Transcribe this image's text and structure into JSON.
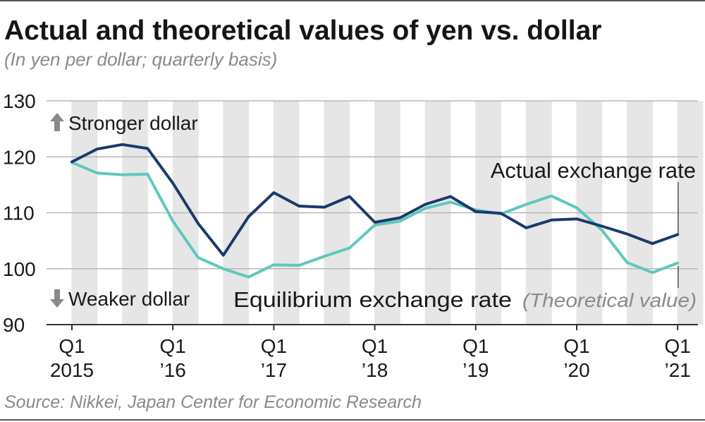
{
  "title": "Actual and theoretical values of yen vs. dollar",
  "subtitle": "(In yen per dollar; quarterly basis)",
  "source": "Source: Nikkei, Japan Center for Economic Research",
  "colors": {
    "actual": "#1b3a6b",
    "equilibrium": "#5fc8bd",
    "band": "#e6e6e6",
    "grid": "#b8b8b8",
    "annotation_gray": "#8a8a8a"
  },
  "annotations": {
    "stronger": "Stronger dollar",
    "weaker": "Weaker dollar",
    "stronger_icon": "arrow-up-icon",
    "weaker_icon": "arrow-down-icon"
  },
  "chart_data": {
    "type": "line",
    "ylim": [
      90,
      130
    ],
    "y_ticks": [
      90,
      100,
      110,
      120,
      130
    ],
    "x": [
      "2015Q1",
      "2015Q2",
      "2015Q3",
      "2015Q4",
      "2016Q1",
      "2016Q2",
      "2016Q3",
      "2016Q4",
      "2017Q1",
      "2017Q2",
      "2017Q3",
      "2017Q4",
      "2018Q1",
      "2018Q2",
      "2018Q3",
      "2018Q4",
      "2019Q1",
      "2019Q2",
      "2019Q3",
      "2019Q4",
      "2020Q1",
      "2020Q2",
      "2020Q3",
      "2020Q4",
      "2021Q1"
    ],
    "x_tick_labels": [
      {
        "quarter": "Q1",
        "year": "2015"
      },
      {
        "quarter": "Q1",
        "year": "’16"
      },
      {
        "quarter": "Q1",
        "year": "’17"
      },
      {
        "quarter": "Q1",
        "year": "’18"
      },
      {
        "quarter": "Q1",
        "year": "’19"
      },
      {
        "quarter": "Q1",
        "year": "’20"
      },
      {
        "quarter": "Q1",
        "year": "’21"
      }
    ],
    "grid": true,
    "series": [
      {
        "name": "Actual exchange rate",
        "values": [
          119.1,
          121.4,
          122.2,
          121.5,
          115.3,
          108.1,
          102.4,
          109.3,
          113.6,
          111.2,
          111.0,
          112.9,
          108.3,
          109.1,
          111.5,
          112.9,
          110.2,
          109.9,
          107.3,
          108.7,
          108.9,
          107.6,
          106.2,
          104.5,
          106.1
        ],
        "label": "Actual exchange rate"
      },
      {
        "name": "Equilibrium exchange rate",
        "values": [
          119.0,
          117.1,
          116.8,
          116.9,
          108.5,
          102.0,
          100.0,
          98.5,
          100.7,
          100.6,
          102.2,
          103.7,
          107.8,
          108.5,
          110.8,
          111.9,
          110.5,
          109.8,
          111.5,
          113.0,
          110.9,
          106.9,
          101.1,
          99.3,
          101.0
        ],
        "label": "Equilibrium exchange rate",
        "label_note": "(Theoretical value)"
      }
    ]
  }
}
